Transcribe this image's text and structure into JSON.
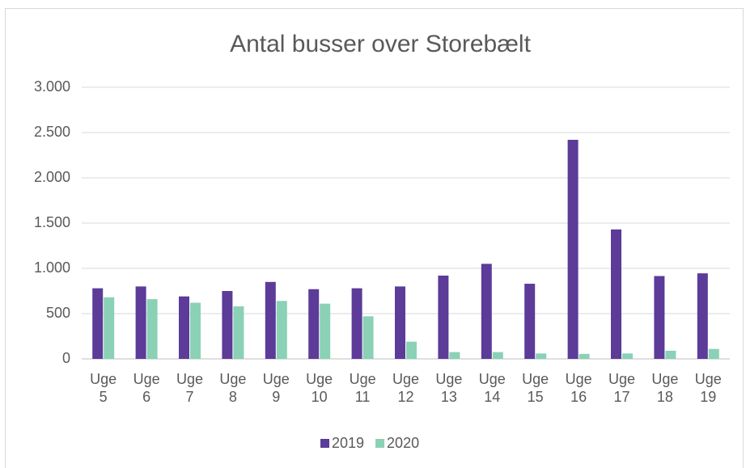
{
  "chart_data": {
    "type": "bar",
    "title": "Antal busser over Storebælt",
    "categories": [
      "Uge 5",
      "Uge 6",
      "Uge 7",
      "Uge 8",
      "Uge 9",
      "Uge 10",
      "Uge 11",
      "Uge 12",
      "Uge 13",
      "Uge 14",
      "Uge 15",
      "Uge 16",
      "Uge 17",
      "Uge 18",
      "Uge 19"
    ],
    "series": [
      {
        "name": "2019",
        "color": "#5c3b99",
        "values": [
          780,
          800,
          690,
          750,
          850,
          770,
          780,
          800,
          920,
          1050,
          830,
          2420,
          1430,
          915,
          945
        ]
      },
      {
        "name": "2020",
        "color": "#8ad1b6",
        "values": [
          680,
          660,
          620,
          580,
          640,
          610,
          470,
          190,
          75,
          75,
          60,
          55,
          60,
          90,
          110
        ]
      }
    ],
    "ylim": [
      0,
      3000
    ],
    "yticks": [
      0,
      500,
      {
        "value": 1000,
        "label": "1.000"
      },
      {
        "value": 1500,
        "label": "1.500"
      },
      {
        "value": 2000,
        "label": "2.000"
      },
      {
        "value": 2500,
        "label": "2.500"
      },
      {
        "value": 3000,
        "label": "3.000"
      }
    ],
    "grid": true,
    "legend": "bottom"
  }
}
